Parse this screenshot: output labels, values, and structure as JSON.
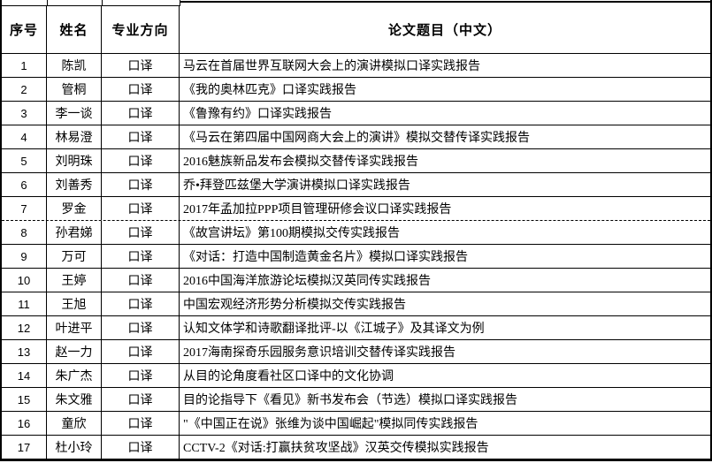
{
  "document": {
    "colors": {
      "border": "#000000",
      "text": "#000000",
      "background": "#ffffff"
    },
    "table": {
      "columns": [
        "序号",
        "姓名",
        "专业方向",
        "论文题目（中文）"
      ],
      "page_break_after_index": "7",
      "rows": [
        {
          "index": "1",
          "name": "陈凯",
          "major": "口译",
          "title": "马云在首届世界互联网大会上的演讲模拟口译实践报告"
        },
        {
          "index": "2",
          "name": "管桐",
          "major": "口译",
          "title": "《我的奥林匹克》口译实践报告"
        },
        {
          "index": "3",
          "name": "李一谈",
          "major": "口译",
          "title": "《鲁豫有约》口译实践报告"
        },
        {
          "index": "4",
          "name": "林易澄",
          "major": "口译",
          "title": "《马云在第四届中国网商大会上的演讲》模拟交替传译实践报告"
        },
        {
          "index": "5",
          "name": "刘明珠",
          "major": "口译",
          "title": "2016魅族新品发布会模拟交替传译实践报告"
        },
        {
          "index": "6",
          "name": "刘善秀",
          "major": "口译",
          "title": "乔•拜登匹兹堡大学演讲模拟口译实践报告"
        },
        {
          "index": "7",
          "name": "罗金",
          "major": "口译",
          "title": "2017年孟加拉PPP项目管理研修会议口译实践报告"
        },
        {
          "index": "8",
          "name": "孙君娣",
          "major": "口译",
          "title": "《故宫讲坛》第100期模拟交传实践报告"
        },
        {
          "index": "9",
          "name": "万可",
          "major": "口译",
          "title": "《对话：打造中国制造黄金名片》模拟口译实践报告"
        },
        {
          "index": "10",
          "name": "王婷",
          "major": "口译",
          "title": "2016中国海洋旅游论坛模拟汉英同传实践报告"
        },
        {
          "index": "11",
          "name": "王旭",
          "major": "口译",
          "title": "中国宏观经济形势分析模拟交传实践报告"
        },
        {
          "index": "12",
          "name": "叶进平",
          "major": "口译",
          "title": "认知文体学和诗歌翻译批评-以《江城子》及其译文为例"
        },
        {
          "index": "13",
          "name": "赵一力",
          "major": "口译",
          "title": "2017海南探奇乐园服务意识培训交替传译实践报告"
        },
        {
          "index": "14",
          "name": "朱广杰",
          "major": "口译",
          "title": "从目的论角度看社区口译中的文化协调"
        },
        {
          "index": "15",
          "name": "朱文雅",
          "major": "口译",
          "title": "目的论指导下《看见》新书发布会（节选）模拟口译实践报告"
        },
        {
          "index": "16",
          "name": "童欣",
          "major": "口译",
          "title": "\"《中国正在说》张维为谈中国崛起\"模拟同传实践报告"
        },
        {
          "index": "17",
          "name": "杜小玲",
          "major": "口译",
          "title": "CCTV-2《对话:打赢扶贫攻坚战》汉英交传模拟实践报告"
        }
      ]
    }
  }
}
